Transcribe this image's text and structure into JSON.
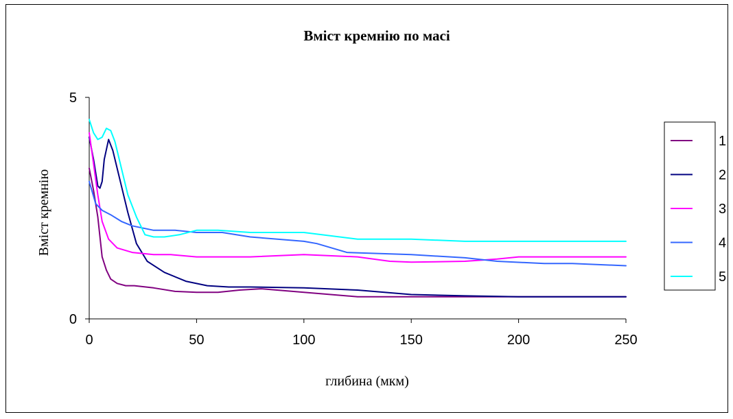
{
  "chart_data": {
    "type": "line",
    "title": "Вміст кремнію по масі",
    "xlabel": "глибина (мкм)",
    "ylabel": "Вміст кремнію",
    "xlim": [
      0,
      250
    ],
    "ylim": [
      0,
      5
    ],
    "x_ticks": [
      "0",
      "50",
      "100",
      "150",
      "200",
      "250"
    ],
    "y_ticks": [
      "0",
      "5"
    ],
    "grid": false,
    "legend_position": "right",
    "series": [
      {
        "name": "1",
        "color": "#800080",
        "points": [
          [
            0,
            3.4
          ],
          [
            2,
            2.9
          ],
          [
            4,
            2.3
          ],
          [
            6,
            1.4
          ],
          [
            8,
            1.1
          ],
          [
            10,
            0.9
          ],
          [
            13,
            0.8
          ],
          [
            17,
            0.75
          ],
          [
            21,
            0.75
          ],
          [
            30,
            0.7
          ],
          [
            40,
            0.62
          ],
          [
            50,
            0.6
          ],
          [
            60,
            0.6
          ],
          [
            70,
            0.65
          ],
          [
            80,
            0.68
          ],
          [
            100,
            0.6
          ],
          [
            125,
            0.5
          ],
          [
            150,
            0.5
          ],
          [
            175,
            0.5
          ],
          [
            200,
            0.5
          ],
          [
            250,
            0.5
          ]
        ]
      },
      {
        "name": "2",
        "color": "#000080",
        "points": [
          [
            0,
            4.1
          ],
          [
            2,
            3.6
          ],
          [
            4,
            3.0
          ],
          [
            5,
            2.95
          ],
          [
            6,
            3.1
          ],
          [
            7,
            3.6
          ],
          [
            9,
            4.05
          ],
          [
            11,
            3.8
          ],
          [
            14,
            3.2
          ],
          [
            18,
            2.4
          ],
          [
            22,
            1.7
          ],
          [
            27,
            1.3
          ],
          [
            35,
            1.05
          ],
          [
            45,
            0.85
          ],
          [
            55,
            0.75
          ],
          [
            65,
            0.72
          ],
          [
            75,
            0.72
          ],
          [
            100,
            0.7
          ],
          [
            125,
            0.65
          ],
          [
            150,
            0.55
          ],
          [
            175,
            0.52
          ],
          [
            200,
            0.5
          ],
          [
            250,
            0.5
          ]
        ]
      },
      {
        "name": "3",
        "color": "#FF00FF",
        "points": [
          [
            0,
            4.2
          ],
          [
            2,
            3.5
          ],
          [
            4,
            2.8
          ],
          [
            6,
            2.2
          ],
          [
            9,
            1.8
          ],
          [
            13,
            1.6
          ],
          [
            20,
            1.5
          ],
          [
            30,
            1.45
          ],
          [
            38,
            1.45
          ],
          [
            50,
            1.4
          ],
          [
            75,
            1.4
          ],
          [
            100,
            1.45
          ],
          [
            125,
            1.4
          ],
          [
            140,
            1.3
          ],
          [
            150,
            1.28
          ],
          [
            175,
            1.3
          ],
          [
            190,
            1.35
          ],
          [
            200,
            1.4
          ],
          [
            250,
            1.4
          ]
        ]
      },
      {
        "name": "4",
        "color": "#3366FF",
        "points": [
          [
            0,
            3.1
          ],
          [
            3,
            2.6
          ],
          [
            6,
            2.45
          ],
          [
            10,
            2.35
          ],
          [
            15,
            2.2
          ],
          [
            20,
            2.1
          ],
          [
            30,
            2.0
          ],
          [
            40,
            2.0
          ],
          [
            50,
            1.95
          ],
          [
            62,
            1.95
          ],
          [
            75,
            1.85
          ],
          [
            100,
            1.75
          ],
          [
            106,
            1.7
          ],
          [
            120,
            1.5
          ],
          [
            150,
            1.45
          ],
          [
            175,
            1.38
          ],
          [
            190,
            1.3
          ],
          [
            212,
            1.25
          ],
          [
            225,
            1.25
          ],
          [
            250,
            1.2
          ]
        ]
      },
      {
        "name": "5",
        "color": "#00FFFF",
        "points": [
          [
            0,
            4.5
          ],
          [
            2,
            4.2
          ],
          [
            4,
            4.05
          ],
          [
            6,
            4.1
          ],
          [
            8,
            4.3
          ],
          [
            10,
            4.25
          ],
          [
            12,
            4.0
          ],
          [
            15,
            3.4
          ],
          [
            18,
            2.8
          ],
          [
            22,
            2.3
          ],
          [
            26,
            1.9
          ],
          [
            30,
            1.85
          ],
          [
            35,
            1.85
          ],
          [
            42,
            1.9
          ],
          [
            50,
            2.0
          ],
          [
            60,
            2.0
          ],
          [
            75,
            1.95
          ],
          [
            100,
            1.95
          ],
          [
            125,
            1.8
          ],
          [
            150,
            1.8
          ],
          [
            175,
            1.75
          ],
          [
            200,
            1.75
          ],
          [
            250,
            1.75
          ]
        ]
      }
    ]
  }
}
